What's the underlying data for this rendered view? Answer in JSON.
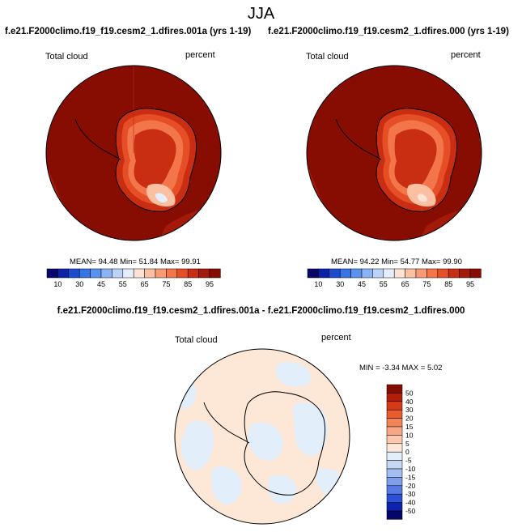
{
  "figure": {
    "season": "JJA"
  },
  "chart_data": [
    {
      "type": "heatmap",
      "projection": "south-polar-stereographic",
      "title": "f.e21.F2000climo.f19_f19.cesm2_1.dfires.001a (yrs 1-19)",
      "variable": "Total cloud",
      "units": "percent",
      "stats": {
        "mean_label": "MEAN=",
        "mean": "94.48",
        "min_label": "Min=",
        "min": "51.84",
        "max_label": "Max=",
        "max": "99.91"
      },
      "colorbar": {
        "orientation": "horizontal",
        "levels": [
          10,
          30,
          45,
          55,
          65,
          75,
          85,
          95
        ]
      }
    },
    {
      "type": "heatmap",
      "projection": "south-polar-stereographic",
      "title": "f.e21.F2000climo.f19_f19.cesm2_1.dfires.000 (yrs 1-19)",
      "variable": "Total cloud",
      "units": "percent",
      "stats": {
        "mean_label": "MEAN=",
        "mean": "94.22",
        "min_label": "Min=",
        "min": "54.77",
        "max_label": "Max=",
        "max": "99.90"
      },
      "colorbar": {
        "orientation": "horizontal",
        "levels": [
          10,
          30,
          45,
          55,
          65,
          75,
          85,
          95
        ]
      }
    },
    {
      "type": "heatmap",
      "projection": "south-polar-stereographic",
      "title": "f.e21.F2000climo.f19_f19.cesm2_1.dfires.001a - f.e21.F2000climo.f19_f19.cesm2_1.dfires.000",
      "variable": "Total cloud",
      "units": "percent",
      "stats": {
        "min_label": "MIN =",
        "min": "-3.34",
        "max_label": "MAX =",
        "max": "5.02"
      },
      "colorbar": {
        "orientation": "vertical",
        "levels": [
          50,
          40,
          30,
          20,
          15,
          10,
          5,
          0,
          -5,
          -10,
          -15,
          -20,
          -30,
          -40,
          -50
        ]
      }
    }
  ],
  "colors": {
    "abs_fill": [
      "#08056b",
      "#0b22a8",
      "#1b4ccf",
      "#3474e6",
      "#5a92ee",
      "#8ab2f4",
      "#bbd3f8",
      "#e5eefc",
      "#fde3d4",
      "#fbbfa1",
      "#f89a73",
      "#f3754a",
      "#e54e26",
      "#c92d12",
      "#a41a08",
      "#870d03"
    ],
    "diff_fill": [
      "#870d03",
      "#b31d0a",
      "#d63b18",
      "#ea5b2e",
      "#f38458",
      "#f8a683",
      "#fcc7ac",
      "#fde7d6",
      "#e3eefb",
      "#c4d8f6",
      "#a2bdf1",
      "#7e9eeb",
      "#567be3",
      "#2d50d6",
      "#0d22b0",
      "#04066a"
    ]
  }
}
